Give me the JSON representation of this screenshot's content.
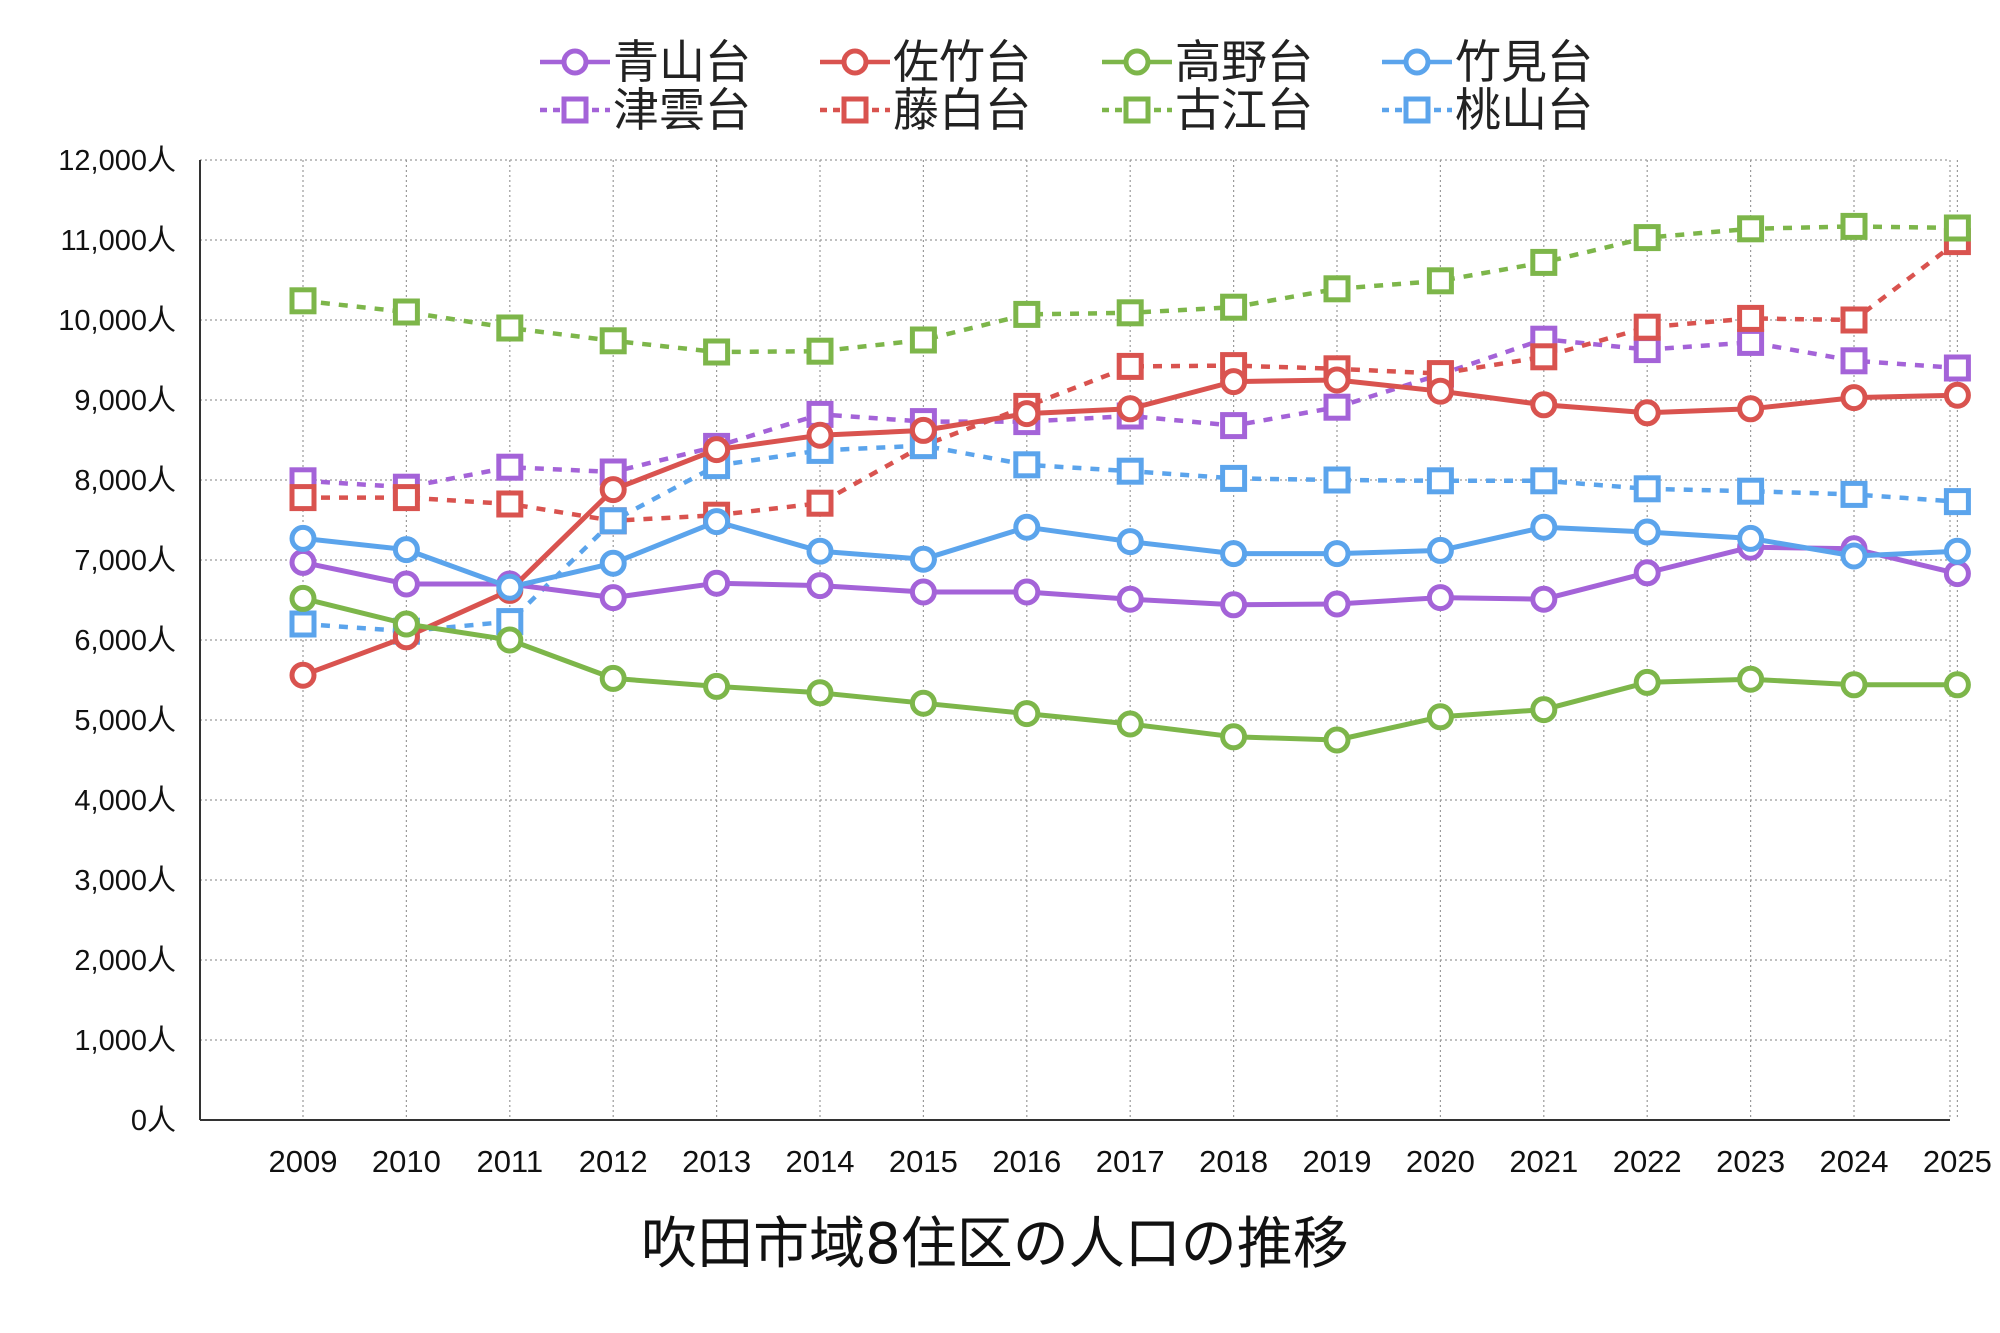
{
  "chart_data": {
    "type": "line",
    "title": "吹田市域8住区の人口の推移",
    "x": [
      "2009",
      "2010",
      "2011",
      "2012",
      "2013",
      "2014",
      "2015",
      "2016",
      "2017",
      "2018",
      "2019",
      "2020",
      "2021",
      "2022",
      "2023",
      "2024",
      "2025"
    ],
    "ylim": [
      0,
      12000
    ],
    "yticks": [
      0,
      1000,
      2000,
      3000,
      4000,
      5000,
      6000,
      7000,
      8000,
      9000,
      10000,
      11000,
      12000
    ],
    "ytick_labels": [
      "0人",
      "1,000人",
      "2,000人",
      "3,000人",
      "4,000人",
      "5,000人",
      "6,000人",
      "7,000人",
      "8,000人",
      "9,000人",
      "10,000人",
      "11,000人",
      "12,000人"
    ],
    "grid": true,
    "legend_position": "top",
    "series": [
      {
        "name": "青山台",
        "color": "#a463d8",
        "marker": "circle",
        "dashed": false,
        "values": [
          6970,
          6700,
          6700,
          6530,
          6710,
          6680,
          6600,
          6600,
          6510,
          6440,
          6450,
          6530,
          6510,
          6840,
          7160,
          7140,
          6830
        ]
      },
      {
        "name": "佐竹台",
        "color": "#d9534f",
        "marker": "circle",
        "dashed": false,
        "values": [
          5560,
          6040,
          6620,
          7880,
          8380,
          8560,
          8620,
          8830,
          8890,
          9230,
          9250,
          9110,
          8940,
          8840,
          8890,
          9030,
          9060
        ]
      },
      {
        "name": "高野台",
        "color": "#7db64a",
        "marker": "circle",
        "dashed": false,
        "values": [
          6520,
          6200,
          6000,
          5520,
          5420,
          5340,
          5210,
          5080,
          4950,
          4790,
          4750,
          5040,
          5130,
          5470,
          5510,
          5440,
          5440
        ]
      },
      {
        "name": "竹見台",
        "color": "#5ba4ec",
        "marker": "circle",
        "dashed": false,
        "values": [
          7270,
          7130,
          6660,
          6960,
          7480,
          7110,
          7010,
          7410,
          7230,
          7080,
          7080,
          7120,
          7410,
          7350,
          7270,
          7050,
          7110
        ]
      },
      {
        "name": "津雲台",
        "color": "#a463d8",
        "marker": "square",
        "dashed": true,
        "values": [
          7990,
          7910,
          8160,
          8100,
          8420,
          8820,
          8730,
          8730,
          8800,
          8680,
          8910,
          9320,
          9760,
          9630,
          9720,
          9490,
          9400
        ]
      },
      {
        "name": "藤白台",
        "color": "#d9534f",
        "marker": "square",
        "dashed": true,
        "values": [
          7780,
          7780,
          7700,
          7490,
          7560,
          7710,
          8430,
          8920,
          9420,
          9430,
          9390,
          9330,
          9540,
          9910,
          10020,
          10000,
          10980
        ]
      },
      {
        "name": "古江台",
        "color": "#7db64a",
        "marker": "square",
        "dashed": true,
        "values": [
          10240,
          10100,
          9900,
          9740,
          9600,
          9610,
          9750,
          10070,
          10090,
          10160,
          10390,
          10490,
          10720,
          11030,
          11140,
          11170,
          11150
        ]
      },
      {
        "name": "桃山台",
        "color": "#5ba4ec",
        "marker": "square",
        "dashed": true,
        "values": [
          6200,
          6110,
          6230,
          7490,
          8180,
          8370,
          8430,
          8190,
          8110,
          8020,
          8000,
          7990,
          7990,
          7890,
          7860,
          7820,
          7730
        ]
      }
    ]
  }
}
